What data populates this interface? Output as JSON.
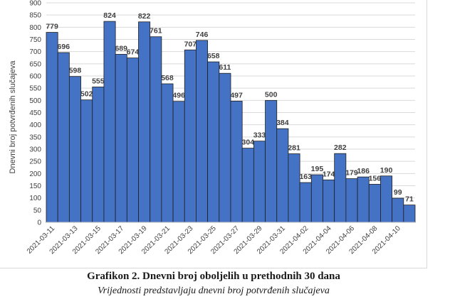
{
  "chart_data": {
    "type": "bar",
    "ylabel": "Dnevni broj potvrđenih slučajeva",
    "ylim": [
      0,
      900
    ],
    "ytick_step": 50,
    "grid": true,
    "bar_color": "#4472c4",
    "bar_edge_color": "#1f1f1f",
    "categories": [
      "2021-03-11",
      "2021-03-12",
      "2021-03-13",
      "2021-03-14",
      "2021-03-15",
      "2021-03-16",
      "2021-03-17",
      "2021-03-18",
      "2021-03-19",
      "2021-03-20",
      "2021-03-21",
      "2021-03-22",
      "2021-03-23",
      "2021-03-24",
      "2021-03-25",
      "2021-03-26",
      "2021-03-27",
      "2021-03-28",
      "2021-03-29",
      "2021-03-30",
      "2021-03-31",
      "2021-04-01",
      "2021-04-02",
      "2021-04-03",
      "2021-04-04",
      "2021-04-05",
      "2021-04-06",
      "2021-04-07",
      "2021-04-08",
      "2021-04-09",
      "2021-04-10",
      "2021-04-11"
    ],
    "x_tick_labels": [
      "2021-03-11",
      "",
      "2021-03-13",
      "",
      "2021-03-15",
      "",
      "2021-03-17",
      "",
      "2021-03-19",
      "",
      "2021-03-21",
      "",
      "2021-03-23",
      "",
      "2021-03-25",
      "",
      "2021-03-27",
      "",
      "2021-03-29",
      "",
      "2021-03-31",
      "",
      "2021-04-02",
      "",
      "2021-04-04",
      "",
      "2021-04-06",
      "",
      "2021-04-08",
      "",
      "2021-04-10",
      ""
    ],
    "values": [
      779,
      696,
      598,
      502,
      555,
      824,
      689,
      674,
      822,
      761,
      568,
      496,
      707,
      746,
      658,
      611,
      497,
      304,
      333,
      500,
      384,
      281,
      163,
      195,
      174,
      282,
      179,
      186,
      156,
      190,
      99,
      71
    ]
  },
  "caption": {
    "title": "Grafikon 2. Dnevni broj oboljelih u prethodnih 30 dana",
    "subtitle": "Vrijednosti predstavljaju dnevni broj potvrđenih slučajeva"
  }
}
